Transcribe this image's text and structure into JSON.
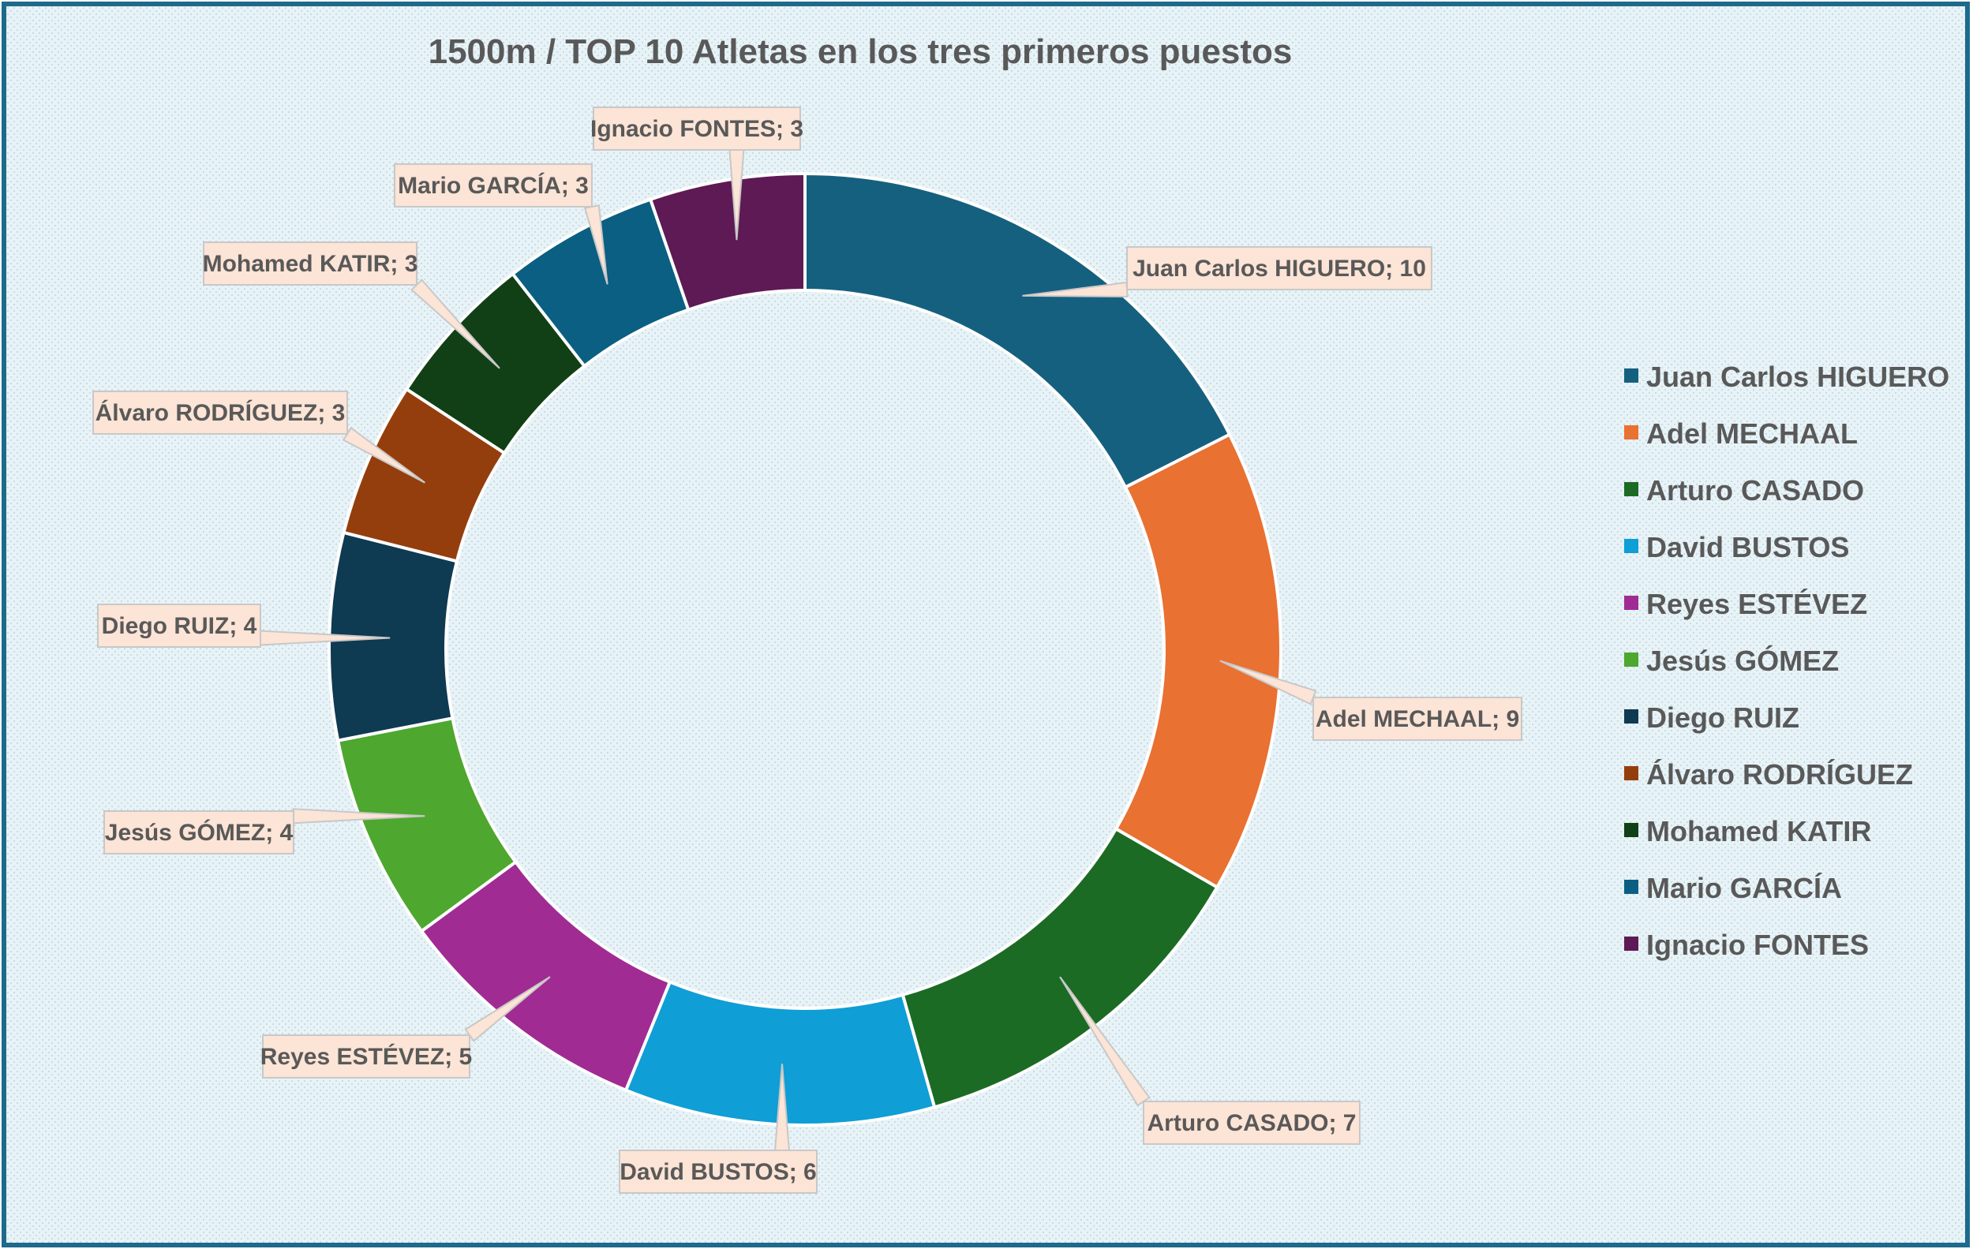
{
  "chart_data": {
    "type": "pie",
    "variant": "doughnut",
    "title": "1500m / TOP 10 Atletas en los tres primeros puestos",
    "categories": [
      "Juan Carlos HIGUERO",
      "Adel MECHAAL",
      "Arturo CASADO",
      "David BUSTOS",
      "Reyes ESTÉVEZ",
      "Jesús GÓMEZ",
      "Diego RUIZ",
      "Álvaro RODRÍGUEZ",
      "Mohamed KATIR",
      "Mario GARCÍA",
      "Ignacio FONTES"
    ],
    "values": [
      10,
      9,
      7,
      6,
      5,
      4,
      4,
      3,
      3,
      3,
      3
    ],
    "data_labels": [
      "Juan Carlos HIGUERO; 10",
      "Adel MECHAAL; 9",
      "Arturo CASADO; 7",
      "David BUSTOS; 6",
      "Reyes ESTÉVEZ; 5",
      "Jesús GÓMEZ; 4",
      "Diego RUIZ; 4",
      "Álvaro RODRÍGUEZ; 3",
      "Mohamed KATIR; 3",
      "Mario GARCÍA; 3",
      "Ignacio FONTES; 3"
    ],
    "colors": [
      "#16607f",
      "#e97132",
      "#1b6b24",
      "#0f9ed5",
      "#a02b93",
      "#4ea72e",
      "#0e3a52",
      "#953e0d",
      "#114016",
      "#0a5f82",
      "#5e1a55"
    ],
    "legend_position": "right",
    "label_style": {
      "fill": "#fce4d6",
      "border": "#c8c8c8",
      "text_color": "#595959"
    },
    "frame_border_color": "#1e6a8c",
    "background_color": "#e4f1f6"
  }
}
